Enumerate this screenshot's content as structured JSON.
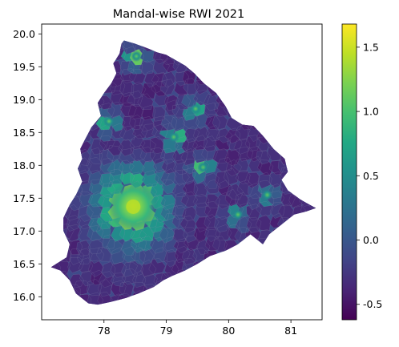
{
  "chart_data": {
    "type": "heatmap",
    "title": "Mandal-wise RWI 2021",
    "xlabel": "",
    "ylabel": "",
    "xlim": [
      77.0,
      81.5
    ],
    "ylim": [
      15.65,
      20.15
    ],
    "x_ticks": [
      "78",
      "79",
      "80",
      "81"
    ],
    "y_ticks": [
      "16.0",
      "16.5",
      "17.0",
      "17.5",
      "18.0",
      "18.5",
      "19.0",
      "19.5",
      "20.0"
    ],
    "grid": false,
    "legend": "none",
    "colorbar": {
      "colormap": "viridis",
      "range": [
        -0.62,
        1.68
      ],
      "ticks": [
        "-0.5",
        "0.0",
        "0.5",
        "1.0",
        "1.5"
      ],
      "placement": "right"
    },
    "hotspots": [
      {
        "lon": 78.47,
        "lat": 17.38,
        "value": 1.6
      },
      {
        "lon": 79.59,
        "lat": 17.97,
        "value": 1.0
      },
      {
        "lon": 79.47,
        "lat": 18.86,
        "value": 0.9
      },
      {
        "lon": 79.12,
        "lat": 18.43,
        "value": 1.3
      },
      {
        "lon": 78.52,
        "lat": 19.66,
        "value": 1.1
      },
      {
        "lon": 78.08,
        "lat": 18.67,
        "value": 1.0
      },
      {
        "lon": 80.15,
        "lat": 17.25,
        "value": 0.7
      },
      {
        "lon": 80.62,
        "lat": 17.55,
        "value": 0.5
      }
    ]
  }
}
